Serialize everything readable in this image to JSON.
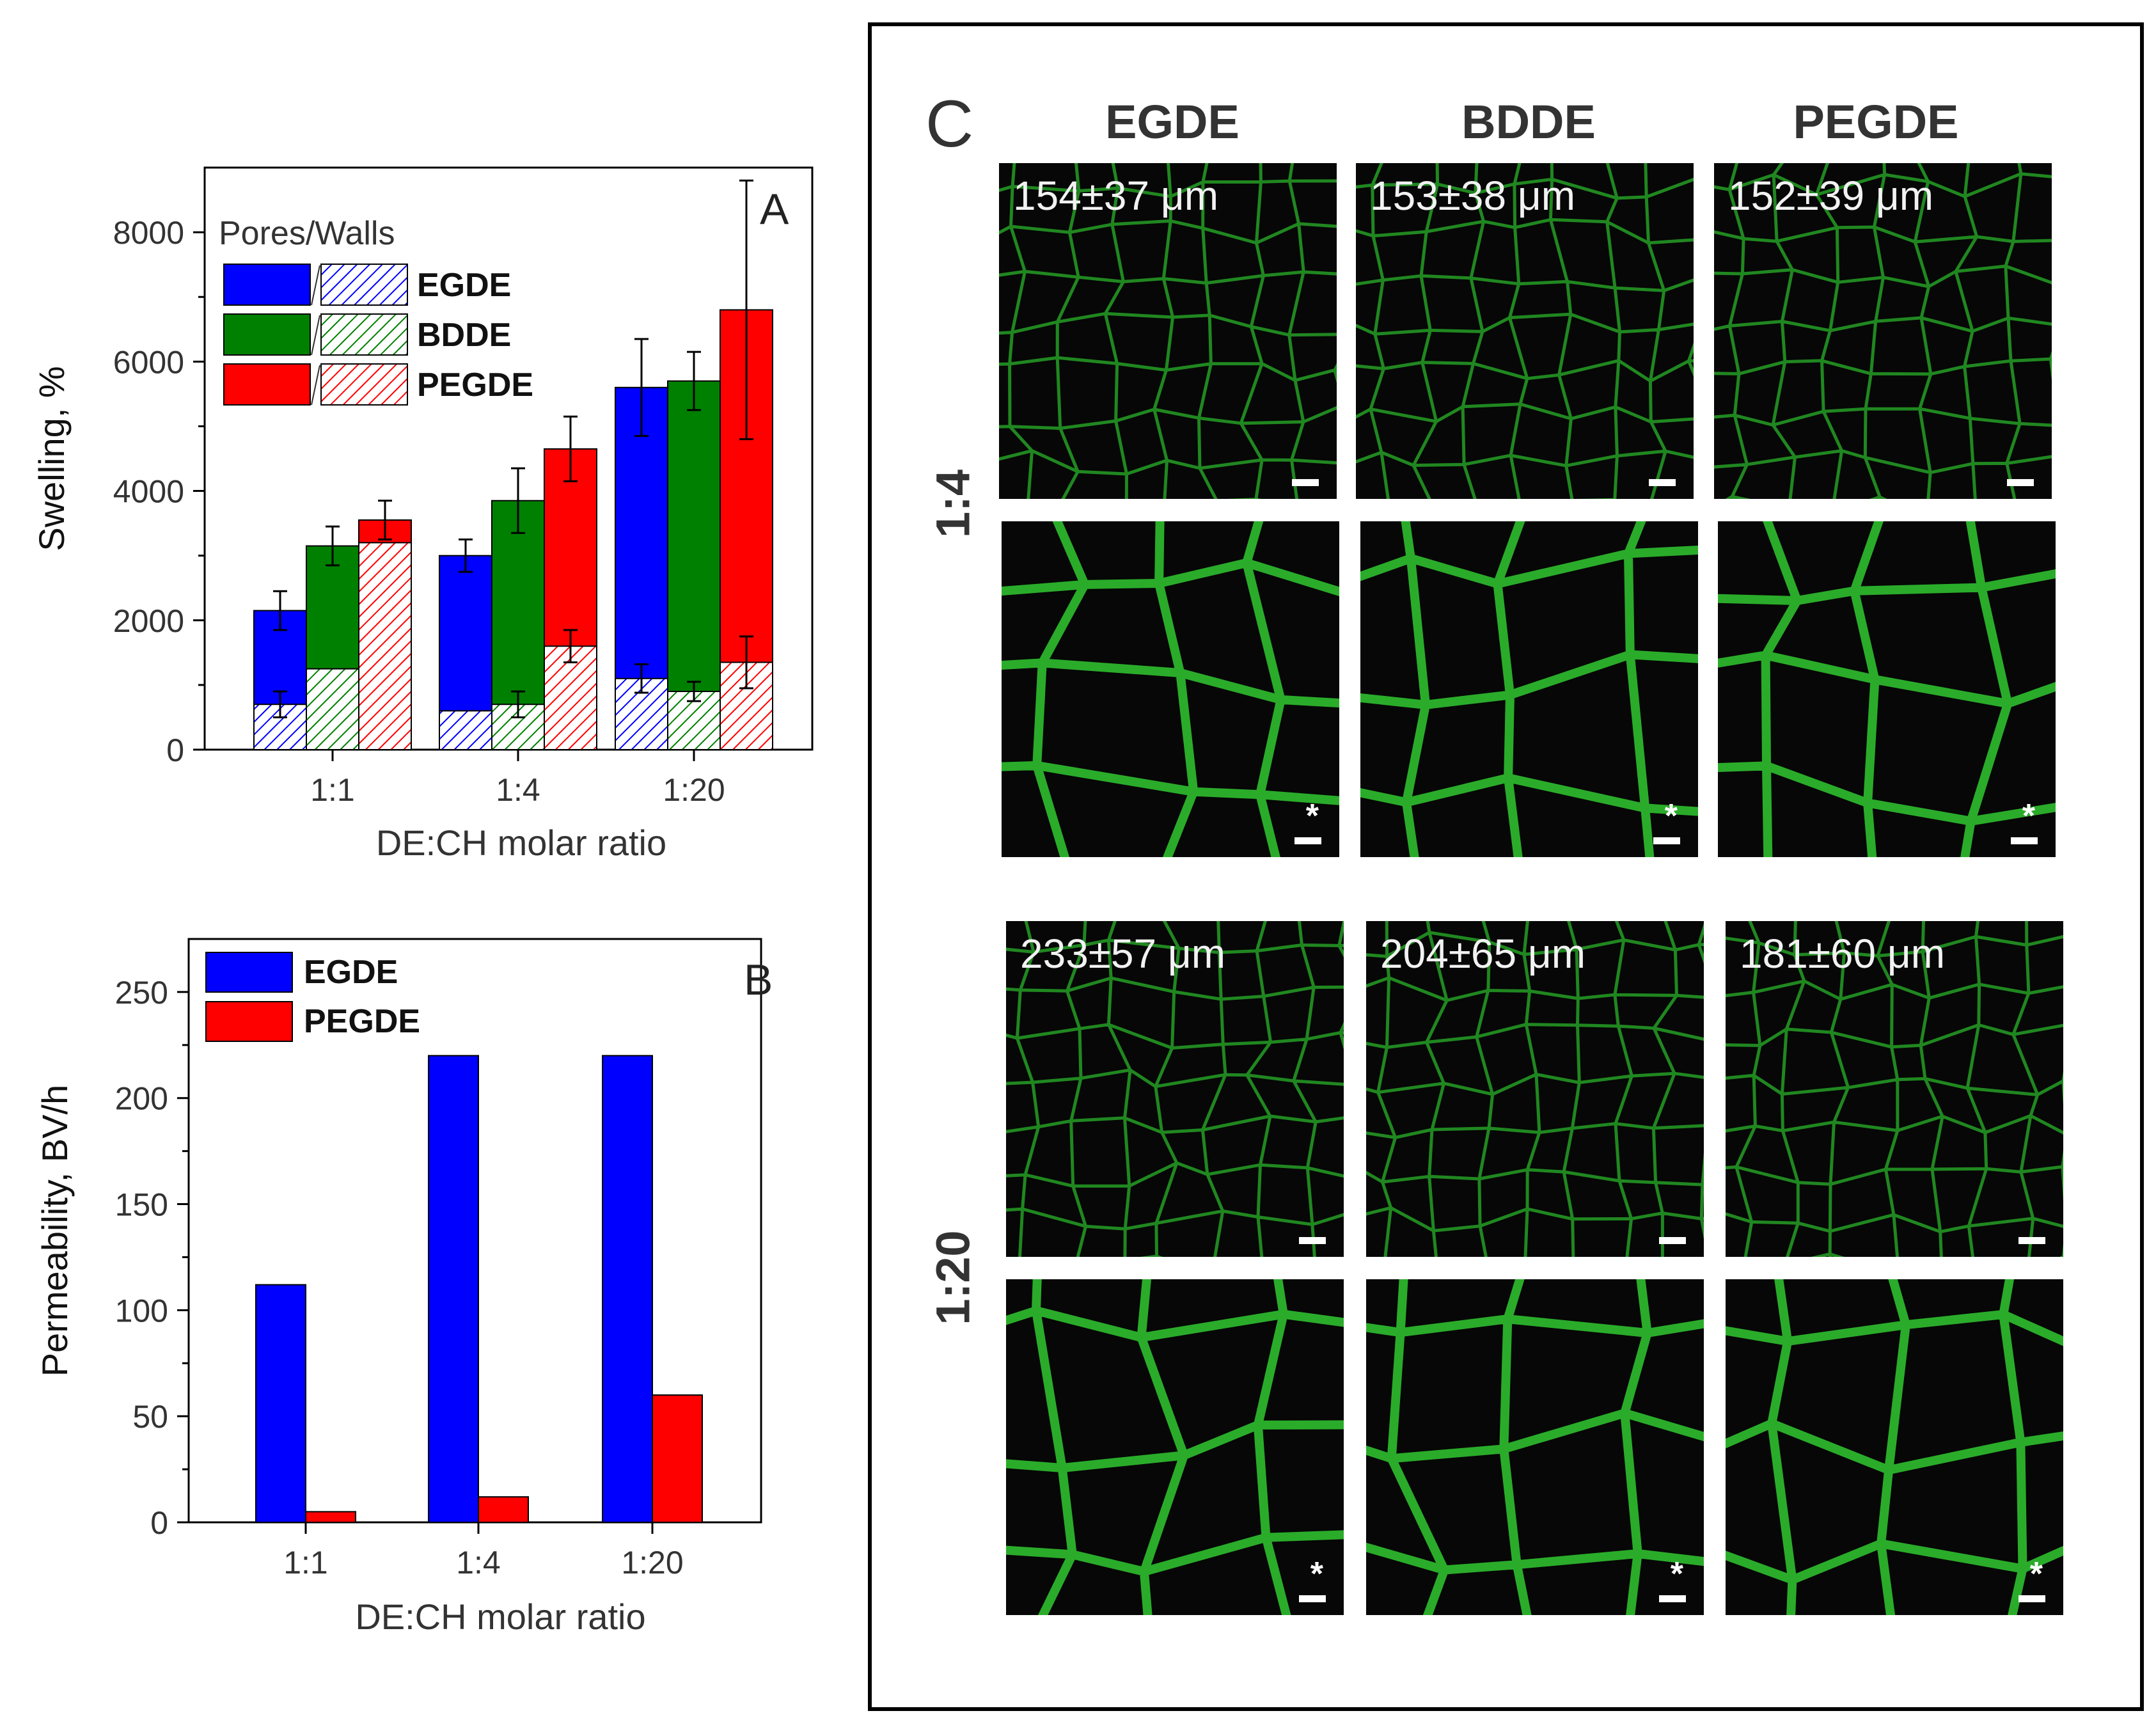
{
  "chart_data": [
    {
      "panel": "A",
      "type": "bar",
      "ylabel": "Swelling, %",
      "xlabel": "DE:CH molar ratio",
      "categories": [
        "1:1",
        "1:4",
        "1:20"
      ],
      "ylim": [
        0,
        9000
      ],
      "yticks": [
        0,
        2000,
        4000,
        6000,
        8000
      ],
      "legend_title": "Pores/Walls",
      "legend_position": "top-left",
      "series": [
        {
          "name": "EGDE",
          "color": "#0000ff",
          "pores": [
            2150,
            3000,
            5600
          ],
          "pores_err": [
            300,
            250,
            750
          ],
          "walls": [
            700,
            600,
            1100
          ],
          "walls_err": [
            200,
            0,
            220
          ]
        },
        {
          "name": "BDDE",
          "color": "#008000",
          "pores": [
            3150,
            3850,
            5700
          ],
          "pores_err": [
            300,
            500,
            450
          ],
          "walls": [
            1250,
            700,
            900
          ],
          "walls_err": [
            0,
            200,
            150
          ]
        },
        {
          "name": "PEGDE",
          "color": "#ff0000",
          "pores": [
            3550,
            4650,
            6800
          ],
          "pores_err": [
            300,
            500,
            2000
          ],
          "walls": [
            3200,
            1600,
            1350
          ],
          "walls_err": [
            0,
            250,
            400
          ]
        }
      ]
    },
    {
      "panel": "B",
      "type": "bar",
      "ylabel": "Permeability, BV/h",
      "xlabel": "DE:CH molar ratio",
      "categories": [
        "1:1",
        "1:4",
        "1:20"
      ],
      "ylim": [
        0,
        275
      ],
      "yticks": [
        0,
        50,
        100,
        150,
        200,
        250
      ],
      "legend_position": "top-left",
      "series": [
        {
          "name": "EGDE",
          "color": "#0000ff",
          "values": [
            112,
            220,
            220
          ]
        },
        {
          "name": "PEGDE",
          "color": "#ff0000",
          "values": [
            5,
            12,
            60
          ]
        }
      ]
    }
  ],
  "panel_a": {
    "letter": "A",
    "legend_title": "Pores/Walls",
    "legend_items": [
      "EGDE",
      "BDDE",
      "PEGDE"
    ]
  },
  "panel_b": {
    "letter": "B",
    "legend_items": [
      "EGDE",
      "PEGDE"
    ]
  },
  "panel_c": {
    "letter": "C",
    "columns": [
      "EGDE",
      "BDDE",
      "PEGDE"
    ],
    "rows": [
      "1:4",
      "1:20"
    ],
    "pore_sizes_1_4": [
      "154±37 μm",
      "153±38 μm",
      "152±39 μm"
    ],
    "pore_sizes_1_20": [
      "233±57 μm",
      "204±65 μm",
      "181±60 μm"
    ],
    "magnified_marker": "*"
  }
}
